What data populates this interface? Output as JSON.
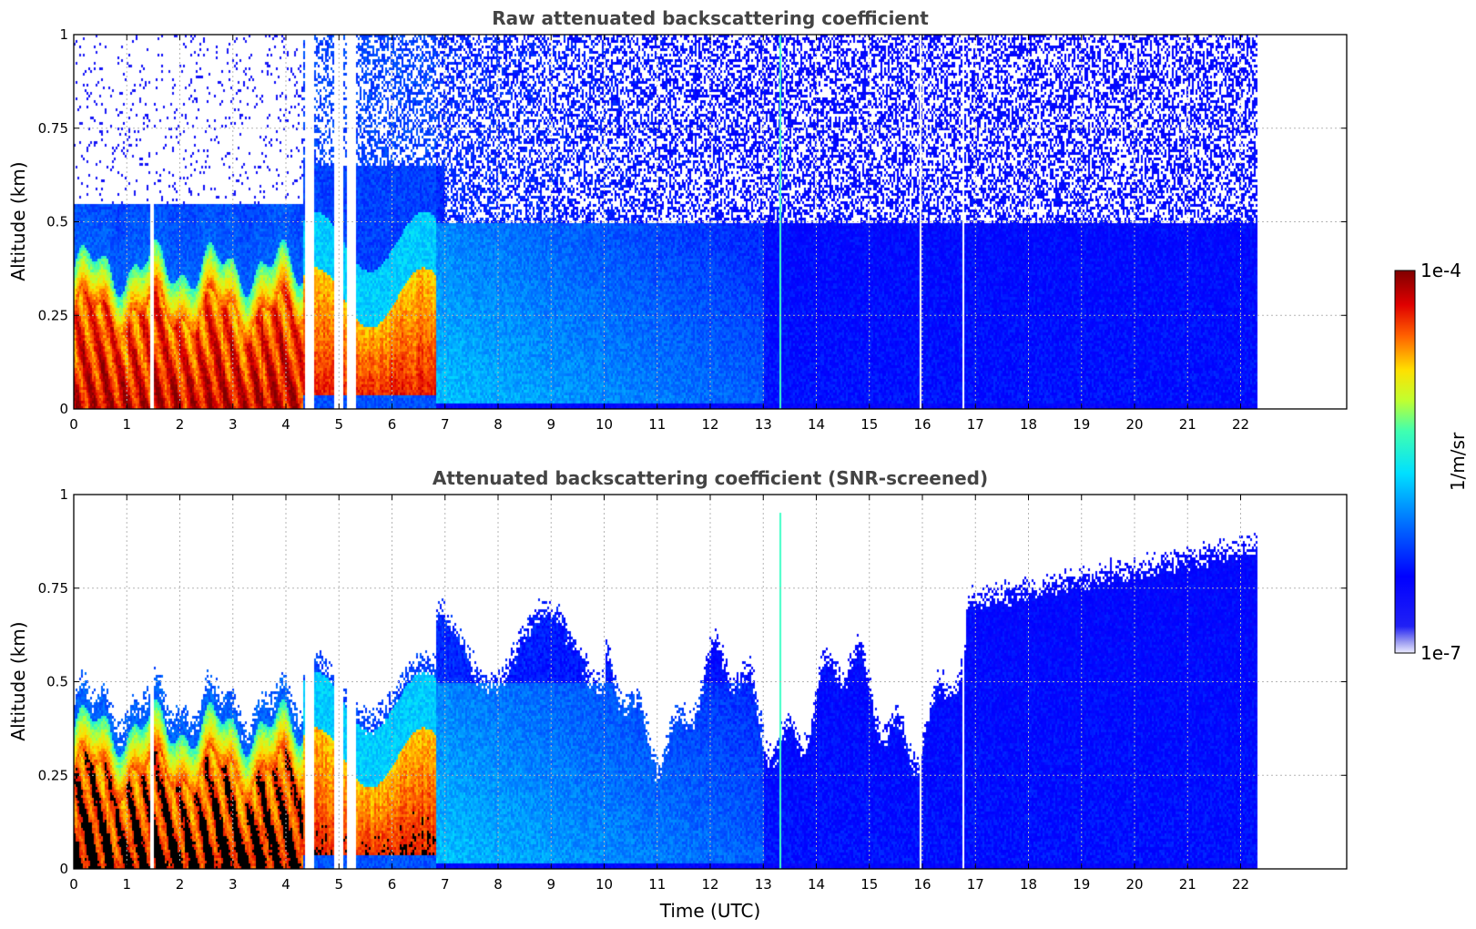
{
  "chart_data": [
    {
      "type": "heatmap",
      "title": "Raw attenuated backscattering coefficient",
      "xlabel": "",
      "ylabel": "Altitude (km)",
      "xlim": [
        0,
        24
      ],
      "ylim": [
        0,
        1
      ],
      "xticks": [
        "0",
        "1",
        "2",
        "3",
        "4",
        "5",
        "6",
        "7",
        "8",
        "9",
        "10",
        "11",
        "12",
        "13",
        "14",
        "15",
        "16",
        "17",
        "18",
        "19",
        "20",
        "21",
        "22"
      ],
      "yticks": [
        "0",
        "0.25",
        "0.5",
        "0.75",
        "1"
      ],
      "grid": true,
      "data_end_time": 22.3,
      "screened": false
    },
    {
      "type": "heatmap",
      "title": "Attenuated backscattering coefficient (SNR-screened)",
      "xlabel": "Time (UTC)",
      "ylabel": "Altitude (km)",
      "xlim": [
        0,
        24
      ],
      "ylim": [
        0,
        1
      ],
      "xticks": [
        "0",
        "1",
        "2",
        "3",
        "4",
        "5",
        "6",
        "7",
        "8",
        "9",
        "10",
        "11",
        "12",
        "13",
        "14",
        "15",
        "16",
        "17",
        "18",
        "19",
        "20",
        "21",
        "22"
      ],
      "yticks": [
        "0",
        "0.25",
        "0.5",
        "0.75",
        "1"
      ],
      "grid": true,
      "data_end_time": 22.3,
      "screened": true
    }
  ],
  "colorbar": {
    "label": "1/m/sr",
    "max_label": "1e-4",
    "min_label": "1e-7",
    "scale": "log",
    "colormap": "jet"
  }
}
